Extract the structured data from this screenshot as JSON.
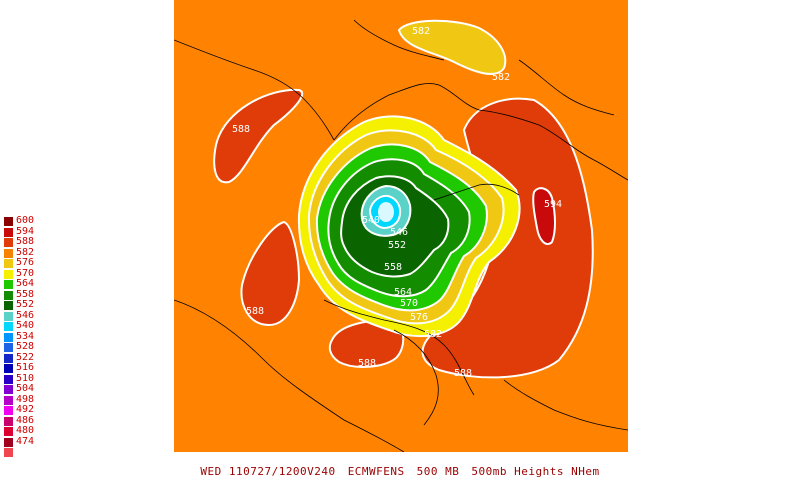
{
  "legend": {
    "title": "",
    "items": [
      {
        "label": "600",
        "color": "#8b0000"
      },
      {
        "label": "594",
        "color": "#c80a0a"
      },
      {
        "label": "588",
        "color": "#e03c0a"
      },
      {
        "label": "582",
        "color": "#f58200"
      },
      {
        "label": "576",
        "color": "#f0c814"
      },
      {
        "label": "570",
        "color": "#f5f000"
      },
      {
        "label": "564",
        "color": "#20c800"
      },
      {
        "label": "558",
        "color": "#148c00"
      },
      {
        "label": "552",
        "color": "#0a6400"
      },
      {
        "label": "546",
        "color": "#5ad2c8"
      },
      {
        "label": "540",
        "color": "#00d7ff"
      },
      {
        "label": "534",
        "color": "#0096ff"
      },
      {
        "label": "528",
        "color": "#1e64e6"
      },
      {
        "label": "522",
        "color": "#1428c8"
      },
      {
        "label": "516",
        "color": "#0000b4"
      },
      {
        "label": "510",
        "color": "#2800c8"
      },
      {
        "label": "504",
        "color": "#8200d2"
      },
      {
        "label": "498",
        "color": "#b400c8"
      },
      {
        "label": "492",
        "color": "#f000f0"
      },
      {
        "label": "486",
        "color": "#c8006e"
      },
      {
        "label": "480",
        "color": "#dc0032"
      },
      {
        "label": "474",
        "color": "#a0001e"
      },
      {
        "label": "",
        "color": "#f04650"
      }
    ]
  },
  "map": {
    "background_color": "#ff8200",
    "contour_labels": [
      {
        "text": "582",
        "lon_region": "siberia-top"
      },
      {
        "text": "582",
        "lon_region": "siberia-right"
      },
      {
        "text": "588",
        "lon_region": "north-atlantic"
      },
      {
        "text": "594",
        "lon_region": "central-asia"
      },
      {
        "text": "588",
        "lon_region": "pacific"
      },
      {
        "text": "540",
        "lon_region": "polar-low"
      },
      {
        "text": "546",
        "lon_region": "polar-low-east"
      },
      {
        "text": "552",
        "lon_region": "arctic-ocean"
      },
      {
        "text": "558",
        "lon_region": "arctic-ocean-south"
      },
      {
        "text": "564",
        "lon_region": "canada"
      },
      {
        "text": "570",
        "lon_region": "canada-south"
      },
      {
        "text": "576",
        "lon_region": "great-lakes"
      },
      {
        "text": "582",
        "lon_region": "eastern-us"
      },
      {
        "text": "588",
        "lon_region": "southern-us"
      },
      {
        "text": "588",
        "lon_region": "atlantic-south"
      }
    ]
  },
  "caption": {
    "date": "WED 110727/1200V240",
    "model": "ECMWFENS",
    "level": "500 MB",
    "field": "500mb Heights NHem"
  }
}
